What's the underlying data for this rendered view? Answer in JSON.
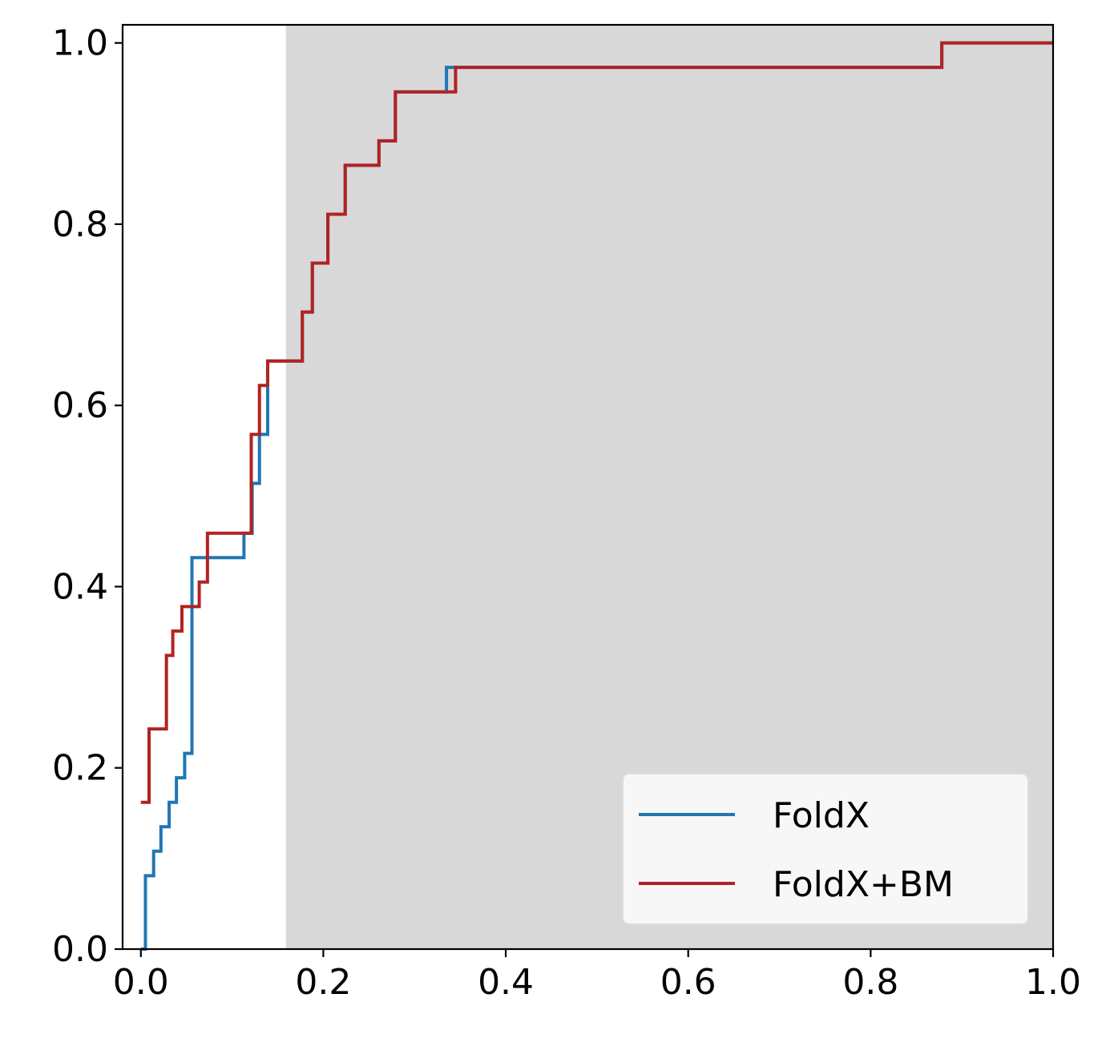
{
  "chart_data": {
    "type": "line",
    "title": "",
    "xlabel": "",
    "ylabel": "",
    "xlim": [
      -0.02,
      1.0
    ],
    "ylim": [
      0.0,
      1.02
    ],
    "xticks": [
      {
        "value": 0.0,
        "label": "0.0"
      },
      {
        "value": 0.2,
        "label": "0.2"
      },
      {
        "value": 0.4,
        "label": "0.4"
      },
      {
        "value": 0.6,
        "label": "0.6"
      },
      {
        "value": 0.8,
        "label": "0.8"
      },
      {
        "value": 1.0,
        "label": "1.0"
      }
    ],
    "yticks": [
      {
        "value": 0.0,
        "label": "0.0"
      },
      {
        "value": 0.2,
        "label": "0.2"
      },
      {
        "value": 0.4,
        "label": "0.4"
      },
      {
        "value": 0.6,
        "label": "0.6"
      },
      {
        "value": 0.8,
        "label": "0.8"
      },
      {
        "value": 1.0,
        "label": "1.0"
      }
    ],
    "grid": false,
    "shaded_region": {
      "x_start": 0.159,
      "x_end": 1.0,
      "color": "#d8d8d8"
    },
    "legend": {
      "placement": "lower-right"
    },
    "series": [
      {
        "name": "FoldX",
        "color": "#1f77b4",
        "step": "post",
        "x": [
          0.0,
          0.005,
          0.014,
          0.022,
          0.031,
          0.039,
          0.048,
          0.056,
          0.113,
          0.122,
          0.13,
          0.139,
          0.159,
          0.177,
          0.188,
          0.205,
          0.224,
          0.261,
          0.279,
          0.335,
          0.345,
          0.878,
          1.0
        ],
        "y": [
          0.0,
          0.081,
          0.108,
          0.135,
          0.162,
          0.189,
          0.216,
          0.432,
          0.459,
          0.514,
          0.568,
          0.649,
          0.649,
          0.703,
          0.757,
          0.811,
          0.865,
          0.892,
          0.946,
          0.973,
          0.973,
          1.0,
          1.0
        ]
      },
      {
        "name": "FoldX+BM",
        "color": "#b22222",
        "step": "post",
        "x": [
          0.0,
          0.009,
          0.028,
          0.035,
          0.045,
          0.064,
          0.073,
          0.121,
          0.13,
          0.139,
          0.177,
          0.188,
          0.205,
          0.224,
          0.261,
          0.279,
          0.345,
          0.878,
          1.0
        ],
        "y": [
          0.162,
          0.243,
          0.324,
          0.351,
          0.378,
          0.405,
          0.459,
          0.568,
          0.622,
          0.649,
          0.703,
          0.757,
          0.811,
          0.865,
          0.892,
          0.946,
          0.973,
          1.0,
          1.0
        ]
      }
    ]
  }
}
